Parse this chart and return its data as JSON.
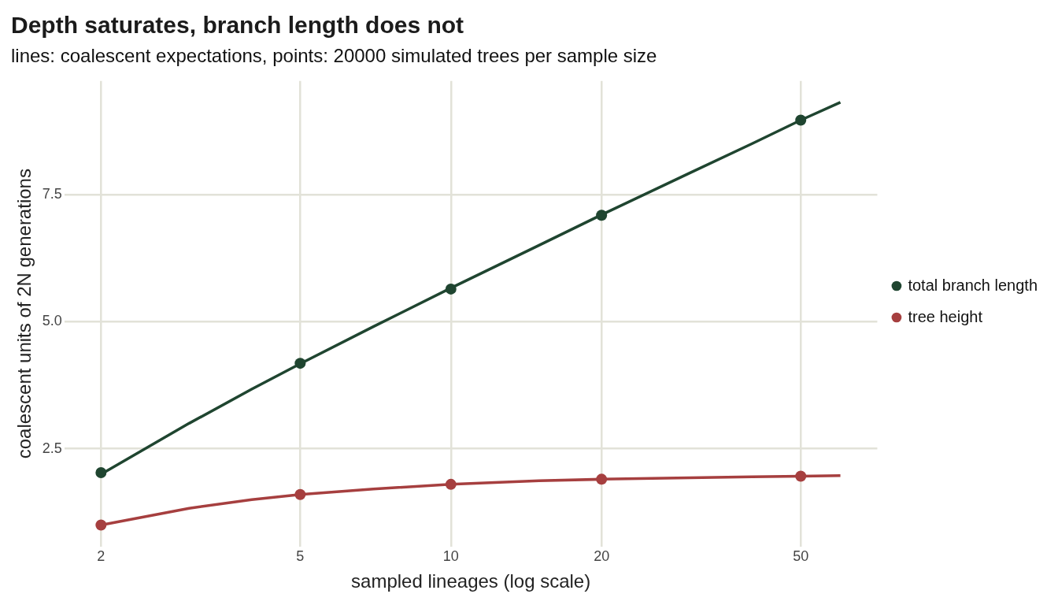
{
  "chart_data": {
    "type": "line",
    "title": "Depth saturates, branch length does not",
    "subtitle": "lines: coalescent expectations, points: 20000 simulated trees per sample size",
    "xlabel": "sampled lineages (log scale)",
    "ylabel": "coalescent units of 2N generations",
    "log": "x",
    "xlim": [
      1.69,
      71.1
    ],
    "xticks": [
      2,
      5,
      10,
      20,
      50
    ],
    "ylim": [
      0.58,
      9.73
    ],
    "yticks": [
      {
        "value": 2.5,
        "label": "2.5"
      },
      {
        "value": 5,
        "label": "5.0"
      },
      {
        "value": 7.5,
        "label": "7.5"
      }
    ],
    "grid": true,
    "legend": "right",
    "line_style": "solid",
    "series": [
      {
        "name": "total branch length",
        "color": "#1f4530",
        "marker": "none",
        "x": [
          2,
          3,
          4,
          5,
          7,
          10,
          15,
          20,
          30,
          40,
          50,
          60
        ],
        "values": [
          2,
          3,
          3.67,
          4.17,
          4.9,
          5.66,
          6.5,
          7.1,
          7.92,
          8.5,
          8.96,
          9.31
        ]
      },
      {
        "name": "tree height",
        "color": "#a63f3f",
        "marker": "none",
        "x": [
          2,
          3,
          4,
          5,
          7,
          10,
          15,
          20,
          30,
          40,
          50,
          60
        ],
        "values": [
          1,
          1.33,
          1.5,
          1.6,
          1.71,
          1.8,
          1.87,
          1.9,
          1.93,
          1.95,
          1.96,
          1.97
        ]
      },
      {
        "color": "#1f4530",
        "type": "scatter",
        "marker": "circle",
        "x": [
          2,
          5,
          10,
          20,
          50
        ],
        "values": [
          2.03,
          4.18,
          5.64,
          7.09,
          8.96
        ]
      },
      {
        "color": "#a63f3f",
        "type": "scatter",
        "marker": "circle",
        "x": [
          2,
          5,
          10,
          20,
          50
        ],
        "values": [
          1.0,
          1.6,
          1.8,
          1.9,
          1.96
        ]
      }
    ]
  }
}
